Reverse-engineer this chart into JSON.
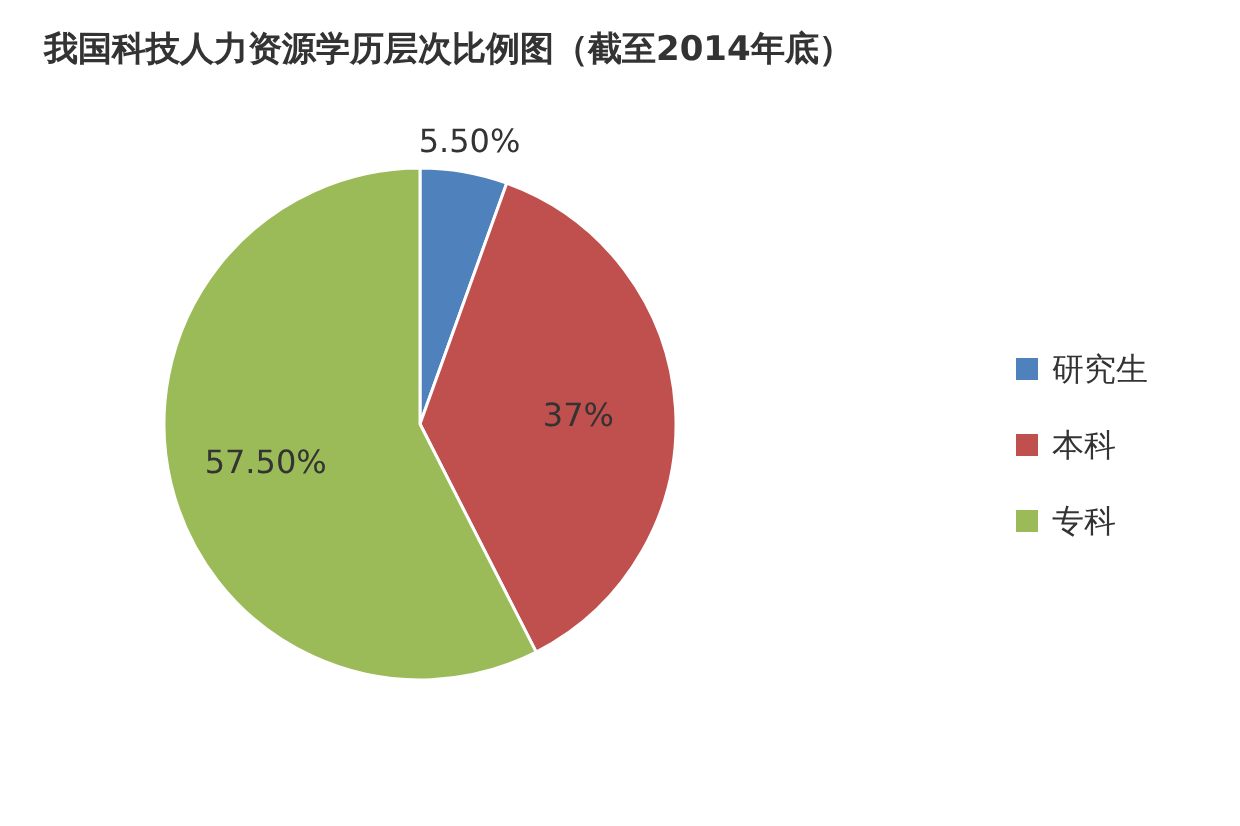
{
  "chart_data": {
    "type": "pie",
    "title": "我国科技人力资源学历层次比例图（截至2014年底）",
    "categories": [
      "研究生",
      "本科",
      "专科"
    ],
    "values": [
      5.5,
      37,
      57.5
    ],
    "value_labels": [
      "5.50%",
      "37%",
      "57.50%"
    ],
    "colors": [
      "#4f81bd",
      "#c0504d",
      "#9bbb59"
    ],
    "legend": "right"
  }
}
